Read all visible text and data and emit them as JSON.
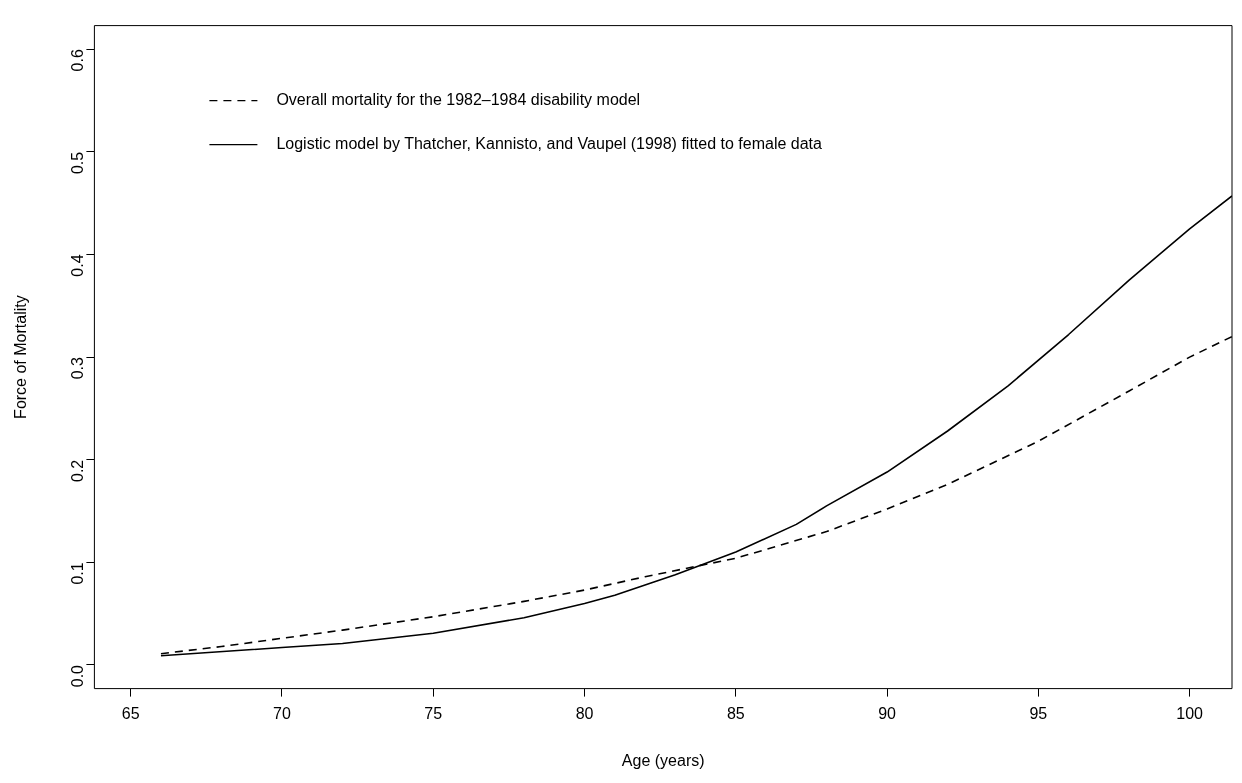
{
  "chart_data": {
    "type": "line",
    "xlabel": "Age (years)",
    "ylabel": "Force of Mortality",
    "xlim": [
      63.8,
      101.4
    ],
    "ylim": [
      -0.023,
      0.623
    ],
    "xticks": [
      65,
      70,
      75,
      80,
      85,
      90,
      95,
      100
    ],
    "yticks": [
      {
        "value": 0,
        "label": "0.0"
      },
      {
        "value": 0.1,
        "label": "0.1"
      },
      {
        "value": 0.2,
        "label": "0.2"
      },
      {
        "value": 0.3,
        "label": "0.3"
      },
      {
        "value": 0.4,
        "label": "0.4"
      },
      {
        "value": 0.5,
        "label": "0.5"
      },
      {
        "value": 0.6,
        "label": "0.6"
      }
    ],
    "grid": false,
    "legend": "top left",
    "marker": "none",
    "series": [
      {
        "name": "Overall mortality for the 1982–1984 disability model",
        "color": "#000000",
        "line_style": "dashed",
        "x": [
          66,
          68,
          70,
          72,
          75,
          78,
          80,
          82,
          85,
          88,
          90,
          92,
          95,
          98,
          100,
          101.4
        ],
        "values": [
          0.011,
          0.018,
          0.026,
          0.034,
          0.047,
          0.062,
          0.073,
          0.086,
          0.104,
          0.13,
          0.152,
          0.176,
          0.218,
          0.267,
          0.3,
          0.32
        ]
      },
      {
        "name": "Logistic model by Thatcher, Kannisto, and Vaupel (1998) fitted to female data",
        "color": "#000000",
        "line_style": "solid",
        "x": [
          66,
          70,
          72,
          75,
          78,
          80,
          81,
          83,
          85,
          87,
          88,
          90,
          92,
          94,
          96,
          98,
          100,
          101.4
        ],
        "values": [
          0.009,
          0.017,
          0.021,
          0.031,
          0.046,
          0.06,
          0.068,
          0.088,
          0.11,
          0.137,
          0.155,
          0.188,
          0.228,
          0.272,
          0.322,
          0.375,
          0.425,
          0.457
        ]
      }
    ]
  }
}
